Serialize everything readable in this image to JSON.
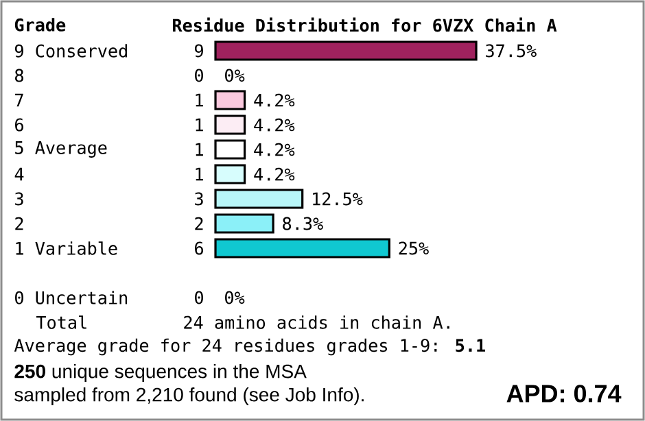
{
  "chart_data": {
    "type": "bar",
    "orientation": "horizontal",
    "title": "Residue Distribution for 6VZX Chain A",
    "ylabel": "Grade",
    "categories": [
      "9 Conserved",
      "8",
      "7",
      "6",
      "5 Average",
      "4",
      "3",
      "2",
      "1 Variable",
      null,
      "0 Uncertain"
    ],
    "values": [
      37.5,
      0,
      4.2,
      4.2,
      4.2,
      4.2,
      12.5,
      8.3,
      25,
      null,
      0
    ],
    "colors": [
      "#a0225e",
      null,
      "#fac9de",
      "#fcedf4",
      "#ffffff",
      "#d7fdfd",
      "#b8f6f8",
      "#8bf0f8",
      "#10c8d1",
      null,
      null
    ],
    "value_labels": [
      "37.5%",
      "0%",
      "4.2%",
      "4.2%",
      "4.2%",
      "4.2%",
      "12.5%",
      "8.3%",
      "25%",
      null,
      "0%"
    ],
    "annotations": [
      "9",
      "0",
      "1",
      "1",
      "1",
      "1",
      "3",
      "2",
      "6",
      "0",
      "Total",
      "24 amino acids in chain A.",
      "Average grade for 24 residues grades 1-9: **5.1**",
      "**250** unique sequences in the MSA",
      "sampled from 2,210 found (see Job Info).",
      "APD: 0.74"
    ]
  }
}
